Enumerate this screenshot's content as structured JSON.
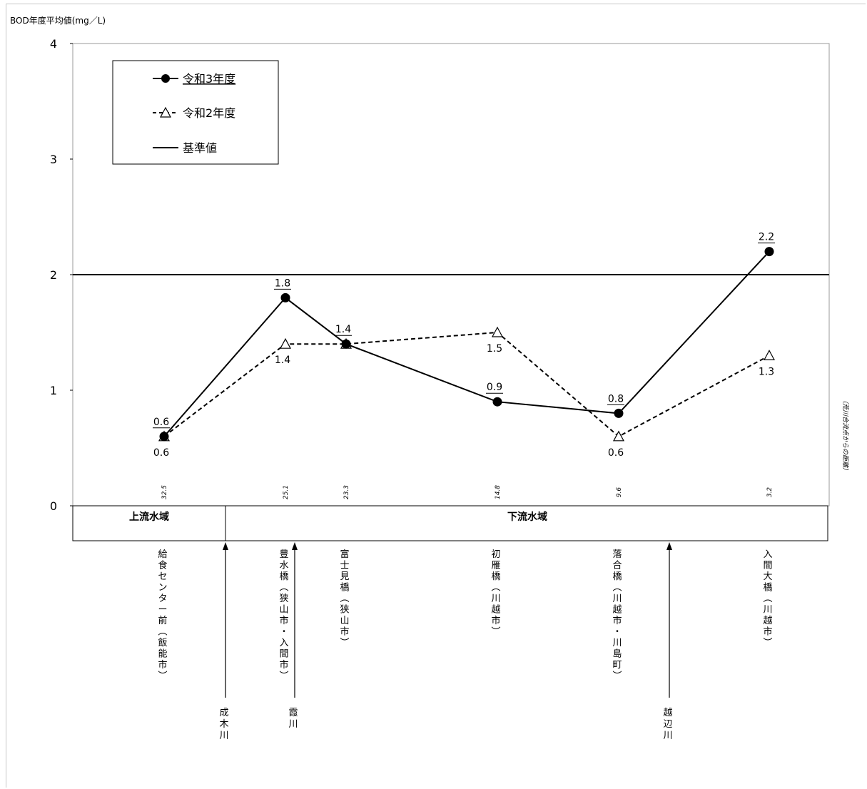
{
  "chart_data": {
    "type": "line",
    "ylabel": "BOD年度平均値(mg／L)",
    "ylim": [
      0,
      4
    ],
    "yticks": [
      "0",
      "1",
      "2",
      "3",
      "4"
    ],
    "distance_label": "（荒川合流点からの距離）",
    "points": [
      {
        "distance": "32.5",
        "site": "給食センター前(飯能市)",
        "r3": 0.6,
        "r2": 0.6
      },
      {
        "distance": "25.1",
        "site": "豊水橋(狭山市・入間市)",
        "r3": 1.8,
        "r2": 1.4
      },
      {
        "distance": "23.3",
        "site": "富士見橋(狭山市)",
        "r3": 1.4,
        "r2": 1.4
      },
      {
        "distance": "14.8",
        "site": "初雁橋(川越市)",
        "r3": 0.9,
        "r2": 1.5
      },
      {
        "distance": "9.6",
        "site": "落合橋(川越市・川島町)",
        "r3": 0.8,
        "r2": 0.6
      },
      {
        "distance": "3.2",
        "site": "入間大橋(川越市)",
        "r3": 2.2,
        "r2": 1.3
      }
    ],
    "r3_labels": [
      "0.6",
      "1.8",
      "1.4",
      "0.9",
      "0.8",
      "2.2"
    ],
    "r2_labels": [
      "0.6",
      "1.4",
      "",
      "1.5",
      "0.6",
      "1.3"
    ],
    "series": [
      {
        "name": "令和3年度",
        "key": "r3",
        "style": "solid",
        "marker": "filled-circle"
      },
      {
        "name": "令和2年度",
        "key": "r2",
        "style": "dashed",
        "marker": "open-triangle"
      }
    ],
    "standard": {
      "name": "基準値",
      "value": 2
    },
    "zones": [
      {
        "label": "上流水域"
      },
      {
        "label": "下流水域"
      }
    ],
    "tributaries": [
      "成木川",
      "霞川",
      "越辺川"
    ],
    "legend_position": "top-left"
  }
}
